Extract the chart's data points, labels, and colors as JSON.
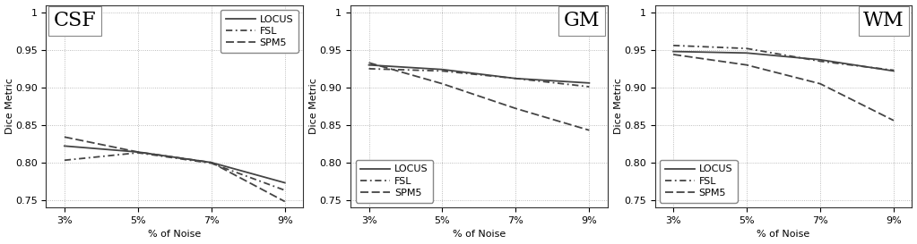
{
  "x": [
    3,
    5,
    7,
    9
  ],
  "x_labels": [
    "3%",
    "5%",
    "7%",
    "9%"
  ],
  "panels": [
    {
      "title": "CSF",
      "title_loc": "upper left",
      "legend_loc": "upper right",
      "ylim": [
        0.74,
        1.01
      ],
      "yticks": [
        0.75,
        0.8,
        0.85,
        0.9,
        0.95,
        1.0
      ],
      "ytick_labels": [
        "0.75",
        "0.80",
        "0.85",
        "0.90",
        "0.95",
        "1"
      ],
      "LOCUS": [
        0.822,
        0.814,
        0.8,
        0.773
      ],
      "FSL": [
        0.803,
        0.813,
        0.799,
        0.763
      ],
      "SPM5": [
        0.834,
        0.814,
        0.8,
        0.748
      ]
    },
    {
      "title": "GM",
      "title_loc": "upper right",
      "legend_loc": "lower left",
      "ylim": [
        0.74,
        1.01
      ],
      "yticks": [
        0.75,
        0.8,
        0.85,
        0.9,
        0.95,
        1.0
      ],
      "ytick_labels": [
        "0.75",
        "0.80",
        "0.85",
        "0.90",
        "0.95",
        "1"
      ],
      "LOCUS": [
        0.93,
        0.924,
        0.912,
        0.906
      ],
      "FSL": [
        0.925,
        0.922,
        0.912,
        0.901
      ],
      "SPM5": [
        0.933,
        0.905,
        0.872,
        0.843
      ]
    },
    {
      "title": "WM",
      "title_loc": "upper right",
      "legend_loc": "lower left",
      "ylim": [
        0.74,
        1.01
      ],
      "yticks": [
        0.75,
        0.8,
        0.85,
        0.9,
        0.95,
        1.0
      ],
      "ytick_labels": [
        "0.75",
        "0.80",
        "0.85",
        "0.90",
        "0.95",
        "1"
      ],
      "LOCUS": [
        0.948,
        0.946,
        0.937,
        0.922
      ],
      "FSL": [
        0.956,
        0.952,
        0.935,
        0.923
      ],
      "SPM5": [
        0.944,
        0.93,
        0.905,
        0.856
      ]
    }
  ],
  "xlabel": "% of Noise",
  "ylabel": "Dice Metric",
  "line_color": "#444444",
  "locus_style": "-",
  "fsl_style": "-.",
  "spm5_style": "--",
  "linewidth": 1.3,
  "legend_labels": [
    "LOCUS",
    "FSL",
    "SPM5"
  ],
  "background_color": "#ffffff",
  "grid_color": "#aaaaaa",
  "title_fontsize": 16,
  "label_fontsize": 8,
  "tick_fontsize": 8,
  "legend_fontsize": 8
}
